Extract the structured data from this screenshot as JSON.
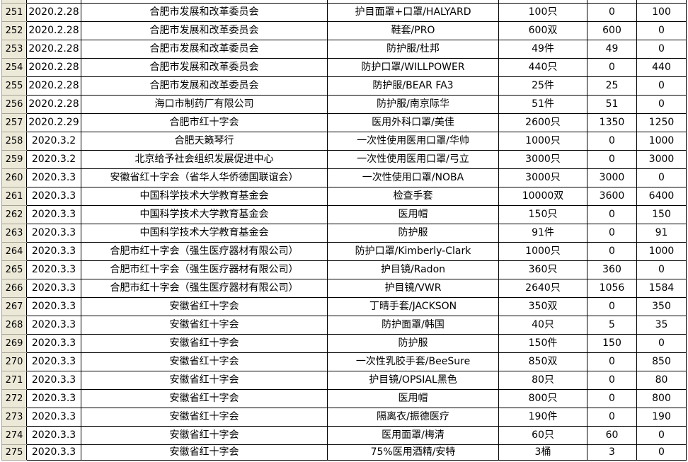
{
  "app": {
    "kind": "spreadsheet-donation-ledger"
  },
  "colors": {
    "row_header_bg": "#ECE9D8",
    "row_header_divider": "#A6A396",
    "grid_line": "#000000",
    "cell_bg": "#FFFFFF",
    "text": "#000000"
  },
  "table": {
    "rows": [
      {
        "no": "251",
        "date": "2020.2.28",
        "donor": "合肥市发展和改革委员会",
        "item": "护目面罩+口罩/HALYARD",
        "qty": "100只",
        "a": "0",
        "b": "100"
      },
      {
        "no": "252",
        "date": "2020.2.28",
        "donor": "合肥市发展和改革委员会",
        "item": "鞋套/PRO",
        "qty": "600双",
        "a": "600",
        "b": "0"
      },
      {
        "no": "253",
        "date": "2020.2.28",
        "donor": "合肥市发展和改革委员会",
        "item": "防护服/杜邦",
        "qty": "49件",
        "a": "49",
        "b": "0"
      },
      {
        "no": "254",
        "date": "2020.2.28",
        "donor": "合肥市发展和改革委员会",
        "item": "防护口罩/WILLPOWER",
        "qty": "440只",
        "a": "0",
        "b": "440"
      },
      {
        "no": "255",
        "date": "2020.2.28",
        "donor": "合肥市发展和改革委员会",
        "item": "防护服/BEAR FA3",
        "qty": "25件",
        "a": "25",
        "b": "0"
      },
      {
        "no": "256",
        "date": "2020.2.28",
        "donor": "海口市制药厂有限公司",
        "item": "防护服/南京际华",
        "qty": "51件",
        "a": "51",
        "b": "0"
      },
      {
        "no": "257",
        "date": "2020.2.29",
        "donor": "合肥市红十字会",
        "item": "医用外科口罩/美佳",
        "qty": "2600只",
        "a": "1350",
        "b": "1250"
      },
      {
        "no": "258",
        "date": "2020.3.2",
        "donor": "合肥天籁琴行",
        "item": "一次性使用医用口罩/华帅",
        "qty": "1000只",
        "a": "0",
        "b": "1000"
      },
      {
        "no": "259",
        "date": "2020.3.2",
        "donor": "北京给予社会组织发展促进中心",
        "item": "一次性使用医用口罩/弓立",
        "qty": "3000只",
        "a": "0",
        "b": "3000"
      },
      {
        "no": "260",
        "date": "2020.3.3",
        "donor": "安徽省红十字会（省华人华侨德国联谊会）",
        "item": "一次性使用口罩/NOBA",
        "qty": "3000只",
        "a": "3000",
        "b": "0"
      },
      {
        "no": "261",
        "date": "2020.3.3",
        "donor": "中国科学技术大学教育基金会",
        "item": "检查手套",
        "qty": "10000双",
        "a": "3600",
        "b": "6400"
      },
      {
        "no": "262",
        "date": "2020.3.3",
        "donor": "中国科学技术大学教育基金会",
        "item": "医用帽",
        "qty": "150只",
        "a": "0",
        "b": "150"
      },
      {
        "no": "263",
        "date": "2020.3.3",
        "donor": "中国科学技术大学教育基金会",
        "item": "防护服",
        "qty": "91件",
        "a": "0",
        "b": "91"
      },
      {
        "no": "264",
        "date": "2020.3.3",
        "donor": "合肥市红十字会（强生医疗器材有限公司）",
        "item": "防护口罩/Kimberly-Clark",
        "qty": "1000只",
        "a": "0",
        "b": "1000"
      },
      {
        "no": "265",
        "date": "2020.3.3",
        "donor": "合肥市红十字会（强生医疗器材有限公司）",
        "item": "护目镜/Radon",
        "qty": "360只",
        "a": "360",
        "b": "0"
      },
      {
        "no": "266",
        "date": "2020.3.3",
        "donor": "合肥市红十字会（强生医疗器材有限公司）",
        "item": "护目镜/VWR",
        "qty": "2640只",
        "a": "1056",
        "b": "1584"
      },
      {
        "no": "267",
        "date": "2020.3.3",
        "donor": "安徽省红十字会",
        "item": "丁晴手套/JACKSON",
        "qty": "350双",
        "a": "0",
        "b": "350"
      },
      {
        "no": "268",
        "date": "2020.3.3",
        "donor": "安徽省红十字会",
        "item": "防护面罩/韩国",
        "qty": "40只",
        "a": "5",
        "b": "35"
      },
      {
        "no": "269",
        "date": "2020.3.3",
        "donor": "安徽省红十字会",
        "item": "防护服",
        "qty": "150件",
        "a": "150",
        "b": "0"
      },
      {
        "no": "270",
        "date": "2020.3.3",
        "donor": "安徽省红十字会",
        "item": "一次性乳胶手套/BeeSure",
        "qty": "850双",
        "a": "0",
        "b": "850"
      },
      {
        "no": "271",
        "date": "2020.3.3",
        "donor": "安徽省红十字会",
        "item": "护目镜/OPSIAL黑色",
        "qty": "80只",
        "a": "0",
        "b": "80"
      },
      {
        "no": "272",
        "date": "2020.3.3",
        "donor": "安徽省红十字会",
        "item": "医用帽",
        "qty": "800只",
        "a": "0",
        "b": "800"
      },
      {
        "no": "273",
        "date": "2020.3.3",
        "donor": "安徽省红十字会",
        "item": "隔离衣/振德医疗",
        "qty": "190件",
        "a": "0",
        "b": "190"
      },
      {
        "no": "274",
        "date": "2020.3.3",
        "donor": "安徽省红十字会",
        "item": "医用面罩/梅清",
        "qty": "60只",
        "a": "60",
        "b": "0"
      },
      {
        "no": "275",
        "date": "2020.3.3",
        "donor": "安徽省红十字会",
        "item": "75%医用酒精/安特",
        "qty": "3桶",
        "a": "3",
        "b": "0"
      }
    ]
  }
}
